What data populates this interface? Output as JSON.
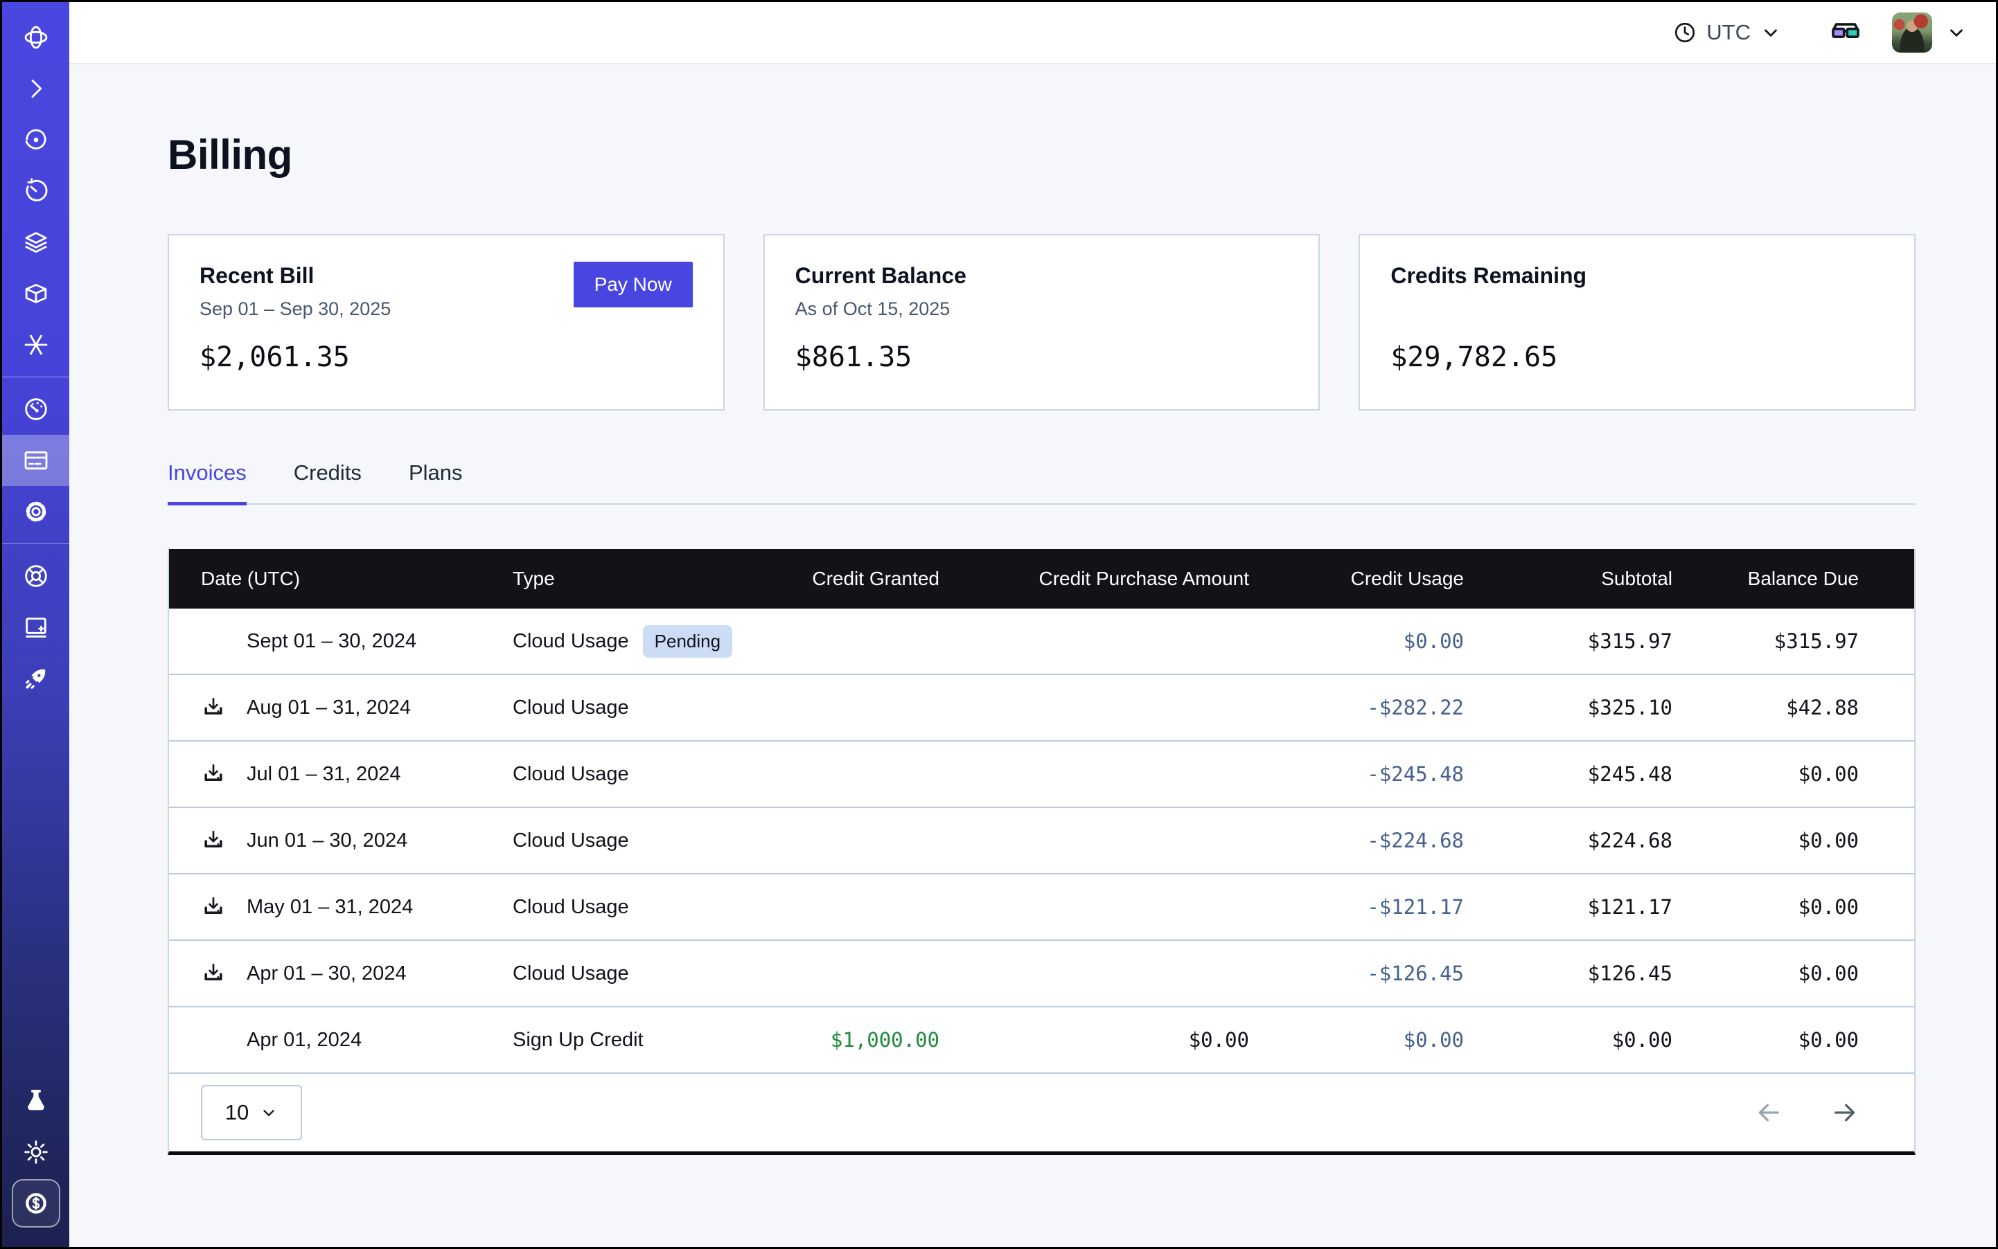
{
  "topbar": {
    "timezone_label": "UTC",
    "icons": [
      "clock-icon",
      "chevron-down-icon",
      "3d-glasses-icon",
      "user-avatar",
      "chevron-down-icon"
    ]
  },
  "sidebar": {
    "icons": [
      "orbit-logo",
      "chevron-right",
      "storm",
      "timer",
      "layers",
      "cube",
      "asterisk",
      "gauge",
      "billing-card",
      "settings-gear",
      "life-ring",
      "docs-book",
      "rocket",
      "flask",
      "brightness",
      "dollar-badge"
    ],
    "active_icon": "billing-card"
  },
  "page": {
    "title": "Billing"
  },
  "cards": [
    {
      "title": "Recent Bill",
      "subtitle": "Sep 01 – Sep 30, 2025",
      "amount": "$2,061.35",
      "action_label": "Pay Now"
    },
    {
      "title": "Current Balance",
      "subtitle": "As of Oct 15, 2025",
      "amount": "$861.35"
    },
    {
      "title": "Credits Remaining",
      "subtitle": "",
      "amount": "$29,782.65"
    }
  ],
  "tabs": [
    {
      "label": "Invoices",
      "active": true
    },
    {
      "label": "Credits",
      "active": false
    },
    {
      "label": "Plans",
      "active": false
    }
  ],
  "table": {
    "columns": [
      "Date (UTC)",
      "Type",
      "Credit Granted",
      "Credit Purchase Amount",
      "Credit Usage",
      "Subtotal",
      "Balance Due"
    ],
    "rows": [
      {
        "date": "Sept 01 – 30, 2024",
        "download": false,
        "type": "Cloud Usage",
        "badge": "Pending",
        "credit_granted": "",
        "credit_purchase": "",
        "credit_usage": "$0.00",
        "subtotal": "$315.97",
        "balance_due": "$315.97"
      },
      {
        "date": "Aug 01 – 31, 2024",
        "download": true,
        "type": "Cloud Usage",
        "badge": "",
        "credit_granted": "",
        "credit_purchase": "",
        "credit_usage": "-$282.22",
        "subtotal": "$325.10",
        "balance_due": "$42.88"
      },
      {
        "date": "Jul 01 – 31, 2024",
        "download": true,
        "type": "Cloud Usage",
        "badge": "",
        "credit_granted": "",
        "credit_purchase": "",
        "credit_usage": "-$245.48",
        "subtotal": "$245.48",
        "balance_due": "$0.00"
      },
      {
        "date": "Jun 01 – 30, 2024",
        "download": true,
        "type": "Cloud Usage",
        "badge": "",
        "credit_granted": "",
        "credit_purchase": "",
        "credit_usage": "-$224.68",
        "subtotal": "$224.68",
        "balance_due": "$0.00"
      },
      {
        "date": "May 01 – 31, 2024",
        "download": true,
        "type": "Cloud Usage",
        "badge": "",
        "credit_granted": "",
        "credit_purchase": "",
        "credit_usage": "-$121.17",
        "subtotal": "$121.17",
        "balance_due": "$0.00"
      },
      {
        "date": "Apr 01 – 30, 2024",
        "download": true,
        "type": "Cloud Usage",
        "badge": "",
        "credit_granted": "",
        "credit_purchase": "",
        "credit_usage": "-$126.45",
        "subtotal": "$126.45",
        "balance_due": "$0.00"
      },
      {
        "date": "Apr 01, 2024",
        "download": false,
        "type": "Sign Up Credit",
        "badge": "",
        "credit_granted": "$1,000.00",
        "credit_purchase": "$0.00",
        "credit_usage": "$0.00",
        "subtotal": "$0.00",
        "balance_due": "$0.00"
      }
    ],
    "pagination": {
      "page_size": "10",
      "prev_icon": "arrow-left-icon",
      "next_icon": "arrow-right-icon"
    }
  },
  "colors": {
    "accent": "#4845e0",
    "usage_text": "#45618f",
    "credit_green": "#1f8a3d",
    "pending_badge_bg": "#cddcf5",
    "table_header_bg": "#131317",
    "row_divider": "#bccadb",
    "content_bg": "#f5f7fa"
  }
}
